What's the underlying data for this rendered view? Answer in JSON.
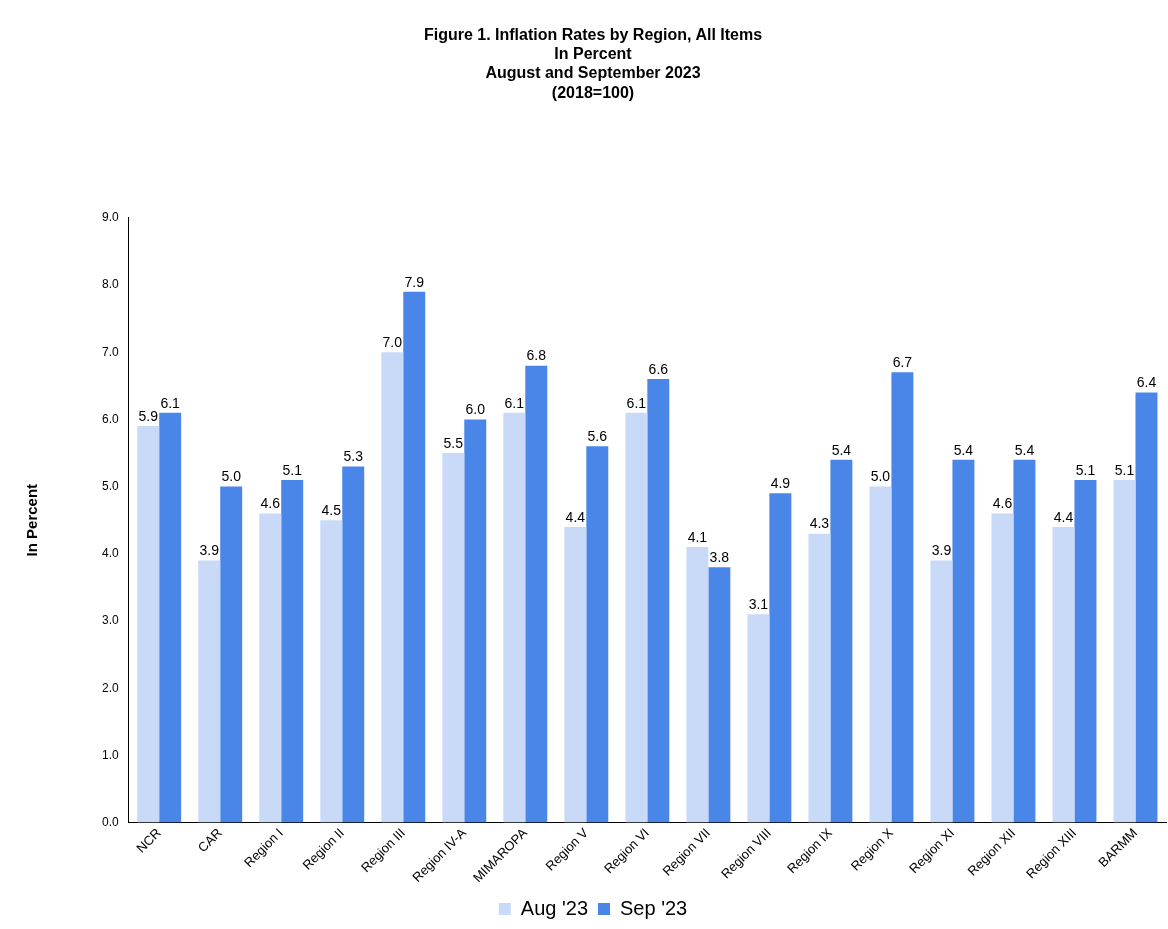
{
  "chart_data": {
    "type": "bar",
    "title": "Figure 1. Inflation Rates by Region, All Items\nIn Percent\nAugust and September 2023\n(2018=100)",
    "ylabel": "In Percent",
    "categories": [
      "NCR",
      "CAR",
      "Region I",
      "Region II",
      "Region III",
      "Region IV-A",
      "MIMAROPA",
      "Region V",
      "Region VI",
      "Region VII",
      "Region VIII",
      "Region IX",
      "Region X",
      "Region XI",
      "Region XII",
      "Region XIII",
      "BARMM"
    ],
    "series": [
      {
        "name": "Aug '23",
        "color": "#c9daf8",
        "values": [
          5.9,
          3.9,
          4.6,
          4.5,
          7.0,
          5.5,
          6.1,
          4.4,
          6.1,
          4.1,
          3.1,
          4.3,
          5.0,
          3.9,
          4.6,
          4.4,
          5.1
        ],
        "value_labels": [
          "5.9",
          "3.9",
          "4.6",
          "4.5",
          "7.0",
          "5.5",
          "6.1",
          "4.4",
          "6.1",
          "4.1",
          "3.1",
          "4.3",
          "5.0",
          "3.9",
          "4.6",
          "4.4",
          "5.1"
        ]
      },
      {
        "name": "Sep '23",
        "color": "#4a86e8",
        "values": [
          6.1,
          5.0,
          5.1,
          5.3,
          7.9,
          6.0,
          6.8,
          5.6,
          6.6,
          3.8,
          4.9,
          5.4,
          6.7,
          5.4,
          5.4,
          5.1,
          6.4
        ],
        "value_labels": [
          "6.1",
          "5.0",
          "5.1",
          "5.3",
          "7.9",
          "6.0",
          "6.8",
          "5.6",
          "6.6",
          "3.8",
          "4.9",
          "5.4",
          "6.7",
          "5.4",
          "5.4",
          "5.1",
          "6.4"
        ]
      }
    ],
    "ylim": [
      0,
      9
    ],
    "yticks": [
      {
        "value": 0,
        "label": "0.0"
      },
      {
        "value": 1,
        "label": "1.0"
      },
      {
        "value": 2,
        "label": "2.0"
      },
      {
        "value": 3,
        "label": "3.0"
      },
      {
        "value": 4,
        "label": "4.0"
      },
      {
        "value": 5,
        "label": "5.0"
      },
      {
        "value": 6,
        "label": "6.0"
      },
      {
        "value": 7,
        "label": "7.0"
      },
      {
        "value": 8,
        "label": "8.0"
      },
      {
        "value": 9,
        "label": "9.0"
      }
    ],
    "grid": false,
    "legend": "bottom"
  }
}
